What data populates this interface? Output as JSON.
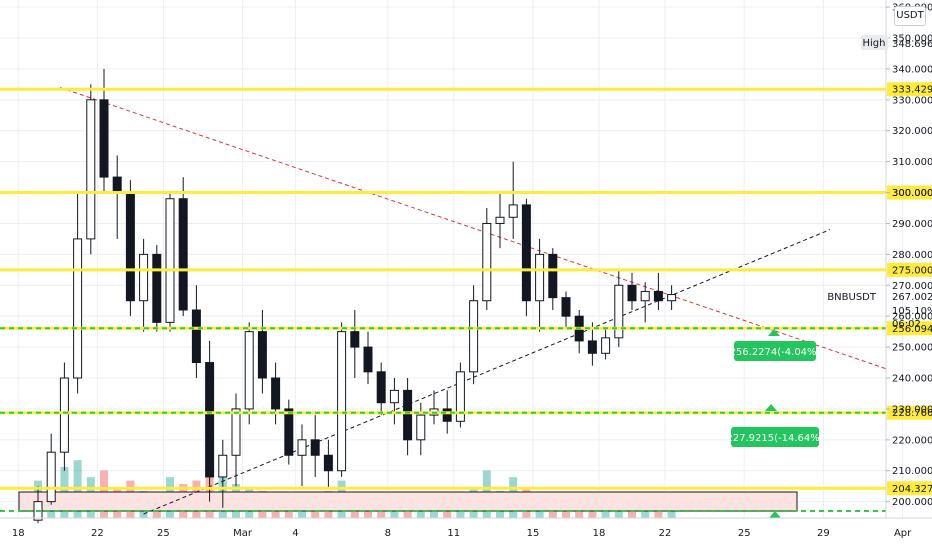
{
  "chart_data": {
    "type": "candlestick",
    "symbol": "BNBUSDT",
    "currency": "USDT",
    "ylim": [
      196,
      361
    ],
    "x_ticks": [
      "18",
      "22",
      "25",
      "Mar",
      "4",
      "8",
      "11",
      "15",
      "18",
      "22",
      "25",
      "29",
      "Apr"
    ],
    "y_ticks": [
      "200.0000",
      "210.0000",
      "220.0000",
      "230.0000",
      "240.0000",
      "250.0000",
      "260.0000",
      "270.0000",
      "280.0000",
      "290.0000",
      "300.0000",
      "310.0000",
      "320.0000",
      "330.0000",
      "340.0000",
      "350.0000",
      "360.0000"
    ],
    "high_label": "High",
    "high_value": "348.6969",
    "last_price": "267.0024",
    "last_pct": "105.10%",
    "countdown": "06:02",
    "horizontal_levels": [
      {
        "value": 333.429,
        "label": "333.4290",
        "style": "solid"
      },
      {
        "value": 300.0,
        "label": "300.0000",
        "style": "solid"
      },
      {
        "value": 275.0,
        "label": "275.0000",
        "style": "solid"
      },
      {
        "value": 256.0942,
        "label": "256.0942",
        "style": "solid-dashed"
      },
      {
        "value": 228.7669,
        "label": "228.7669",
        "style": "solid-dashed"
      },
      {
        "value": 204.327,
        "label": "204.3270",
        "style": "solid"
      }
    ],
    "target_labels": [
      {
        "text": "256.2274(-4.04%)",
        "value": 256.2274
      },
      {
        "text": "227.9215(-14.64%)",
        "value": 227.9215
      }
    ],
    "trendlines": [
      {
        "name": "resistance",
        "from": [
          0,
          334
        ],
        "to": [
          33.5,
          243
        ]
      },
      {
        "name": "support",
        "from": [
          8,
          196
        ],
        "to": [
          35,
          288
        ]
      }
    ],
    "candles": [
      [
        194,
        205,
        193,
        200
      ],
      [
        200,
        222,
        199,
        216
      ],
      [
        216,
        245,
        210,
        240
      ],
      [
        240,
        300,
        235,
        285
      ],
      [
        285,
        335,
        280,
        330
      ],
      [
        330,
        340,
        300,
        305
      ],
      [
        305,
        312,
        285,
        300
      ],
      [
        300,
        304,
        260,
        265
      ],
      [
        265,
        285,
        255,
        280
      ],
      [
        280,
        283,
        255,
        258
      ],
      [
        258,
        300,
        255,
        298
      ],
      [
        298,
        305,
        260,
        262
      ],
      [
        262,
        270,
        240,
        245
      ],
      [
        245,
        252,
        200,
        208
      ],
      [
        208,
        220,
        198,
        215
      ],
      [
        215,
        235,
        205,
        230
      ],
      [
        230,
        258,
        225,
        255
      ],
      [
        255,
        262,
        235,
        240
      ],
      [
        240,
        245,
        225,
        230
      ],
      [
        230,
        233,
        212,
        215
      ],
      [
        215,
        225,
        205,
        220
      ],
      [
        220,
        228,
        208,
        215
      ],
      [
        215,
        220,
        204,
        210
      ],
      [
        210,
        258,
        208,
        255
      ],
      [
        255,
        262,
        240,
        250
      ],
      [
        250,
        255,
        238,
        242
      ],
      [
        242,
        245,
        228,
        232
      ],
      [
        232,
        240,
        225,
        236
      ],
      [
        236,
        240,
        215,
        220
      ],
      [
        220,
        232,
        215,
        228
      ],
      [
        228,
        236,
        225,
        230
      ],
      [
        230,
        236,
        222,
        226
      ],
      [
        226,
        245,
        224,
        242
      ],
      [
        242,
        270,
        238,
        265
      ],
      [
        265,
        295,
        262,
        290
      ],
      [
        290,
        300,
        282,
        292
      ],
      [
        292,
        310,
        285,
        296
      ],
      [
        296,
        298,
        260,
        265
      ],
      [
        265,
        285,
        255,
        280
      ],
      [
        280,
        282,
        262,
        266
      ],
      [
        266,
        268,
        256,
        260
      ],
      [
        260,
        262,
        248,
        252
      ],
      [
        252,
        258,
        244,
        248
      ],
      [
        248,
        256,
        246,
        253
      ],
      [
        253,
        275,
        250,
        270
      ],
      [
        270,
        274,
        262,
        265
      ],
      [
        265,
        271,
        258,
        268
      ],
      [
        268,
        274,
        262,
        265
      ],
      [
        265,
        270,
        262,
        267
      ]
    ],
    "volumes": [
      0.55,
      0.95,
      0.75,
      0.85,
      0.6,
      0.7,
      0.45,
      0.55,
      0.4,
      0.35,
      0.6,
      0.5,
      0.55,
      0.9,
      0.65,
      0.5,
      0.45,
      0.4,
      0.35,
      0.3,
      0.35,
      0.3,
      0.4,
      0.55,
      0.35,
      0.3,
      0.25,
      0.3,
      0.3,
      0.25,
      0.25,
      0.2,
      0.3,
      0.45,
      0.7,
      0.4,
      0.6,
      0.45,
      0.3,
      0.25,
      0.2,
      0.25,
      0.3,
      0.2,
      0.25,
      0.2,
      0.15,
      0.2,
      0.15
    ],
    "colors": {
      "up": "#26a69a",
      "down": "#ef5350",
      "candle": "#131722",
      "level_line": "#ffeb3b",
      "level_dash": "#2ecc40",
      "target_fill": "#22c55e",
      "resistance": "#e5322d",
      "support": "#131722",
      "zone_fill": "#fde2e2",
      "grid": "#eceff2",
      "axis_text": "#131722"
    }
  }
}
